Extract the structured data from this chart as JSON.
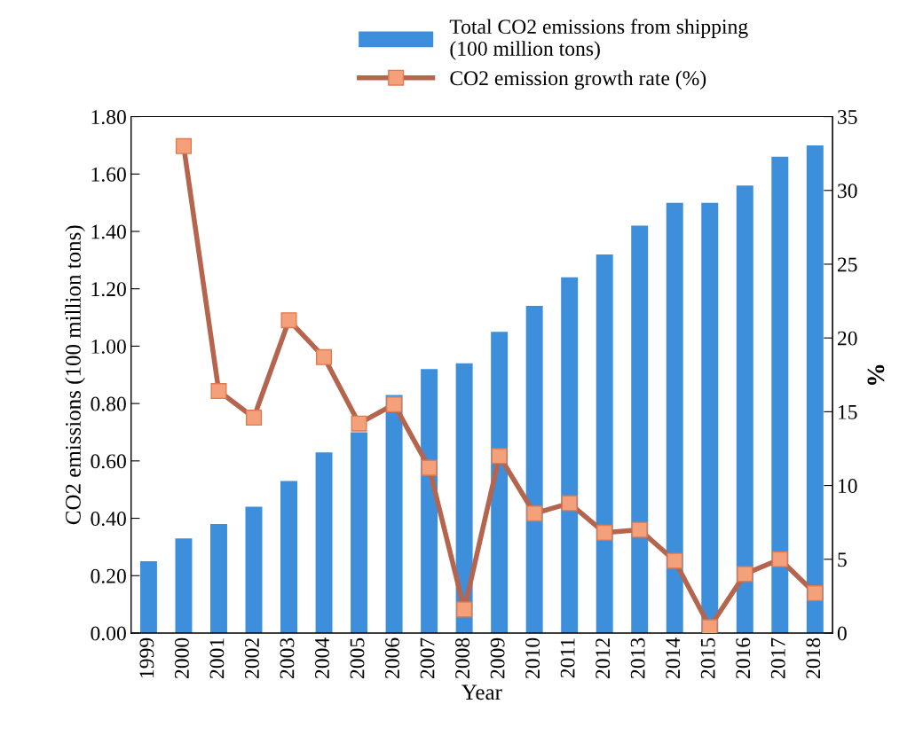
{
  "chart_data": {
    "type": "bar",
    "categories": [
      "1999",
      "2000",
      "2001",
      "2002",
      "2003",
      "2004",
      "2005",
      "2006",
      "2007",
      "2008",
      "2009",
      "2010",
      "2011",
      "2012",
      "2013",
      "2014",
      "2015",
      "2016",
      "2017",
      "2018"
    ],
    "series": [
      {
        "name": "Total CO2 emissions from shipping\n(100 million tons)",
        "color": "#3d8fdc",
        "values": [
          0.25,
          0.33,
          0.38,
          0.44,
          0.53,
          0.63,
          0.7,
          0.83,
          0.92,
          0.94,
          1.05,
          1.14,
          1.24,
          1.32,
          1.42,
          1.5,
          1.5,
          1.56,
          1.66,
          1.7
        ]
      },
      {
        "name": "CO2 emission growth rate (%)",
        "type": "line",
        "axis": "y2",
        "color": "#b5654d",
        "marker": "square",
        "values": [
          null,
          33.0,
          16.4,
          14.6,
          21.2,
          18.7,
          14.2,
          15.5,
          11.2,
          1.6,
          12.0,
          8.1,
          8.8,
          6.8,
          7.0,
          4.9,
          0.4,
          4.0,
          5.0,
          2.7
        ]
      }
    ],
    "xlabel": "Year",
    "ylabel": "CO2 emissions (100 million tons)",
    "y2label": "%",
    "ylim": [
      0,
      1.8
    ],
    "yticks": [
      {
        "value": 0,
        "label": "0.00"
      },
      {
        "value": 0.2,
        "label": "0.20"
      },
      {
        "value": 0.4,
        "label": "0.40"
      },
      {
        "value": 0.6,
        "label": "0.60"
      },
      {
        "value": 0.8,
        "label": "0.80"
      },
      {
        "value": 1.0,
        "label": "1.00"
      },
      {
        "value": 1.2,
        "label": "1.20"
      },
      {
        "value": 1.4,
        "label": "1.40"
      },
      {
        "value": 1.6,
        "label": "1.60"
      },
      {
        "value": 1.8,
        "label": "1.80"
      }
    ],
    "y2lim": [
      0,
      35
    ],
    "y2ticks": [
      0,
      5,
      10,
      15,
      20,
      25,
      30,
      35
    ],
    "legend": "top",
    "grid": false
  }
}
